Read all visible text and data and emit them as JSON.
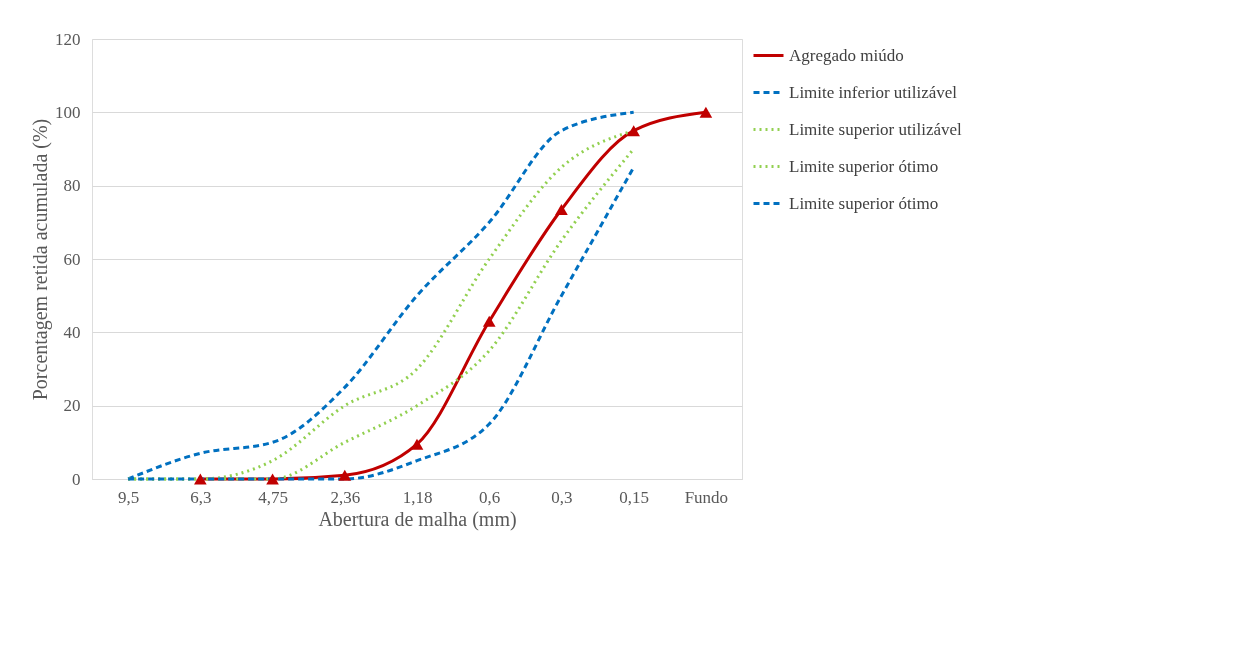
{
  "chart_data": {
    "type": "line",
    "xlabel": "Abertura de malha (mm)",
    "ylabel": "Porcentagem  retida acumulada (%)",
    "categories": [
      "9,5",
      "6,3",
      "4,75",
      "2,36",
      "1,18",
      "0,6",
      "0,3",
      "0,15",
      "Fundo"
    ],
    "ylim": [
      0,
      120
    ],
    "yticks": [
      0,
      20,
      40,
      60,
      80,
      100,
      120
    ],
    "grid": "y",
    "legend": "right",
    "series": [
      {
        "name": "Agregado miúdo",
        "color": "#c00000",
        "line_style": "solid",
        "marker": "triangle",
        "values": [
          null,
          0,
          0,
          1,
          9.5,
          43,
          73.5,
          95,
          100
        ]
      },
      {
        "name": "Limite inferior utilizável",
        "color": "#0070c0",
        "line_style": "dashed",
        "marker": "none",
        "values": [
          0,
          7,
          10,
          25,
          50,
          70,
          95,
          100,
          null
        ]
      },
      {
        "name": "Limite superior utilizável",
        "color": "#92d050",
        "line_style": "dotted",
        "marker": "none",
        "values": [
          0,
          0,
          5,
          20,
          30,
          60,
          85,
          95,
          null
        ]
      },
      {
        "name": "Limite superior ótimo",
        "color": "#92d050",
        "line_style": "dotted",
        "marker": "none",
        "values": [
          0,
          0,
          0,
          10,
          20,
          35,
          65,
          90,
          null
        ]
      },
      {
        "name": "Limite superior ótimo",
        "color": "#0070c0",
        "line_style": "dashed",
        "marker": "none",
        "values": [
          0,
          0,
          0,
          0,
          5,
          15,
          50,
          85,
          null
        ]
      }
    ]
  }
}
